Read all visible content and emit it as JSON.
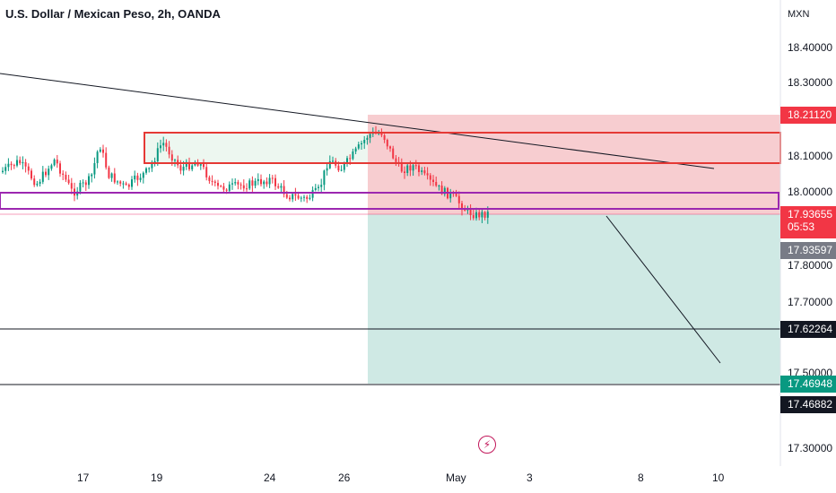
{
  "header": {
    "title": "U.S. Dollar / Mexican Peso, 2h, OANDA",
    "currency": "MXN"
  },
  "price_axis": {
    "ticks": [
      "18.40000",
      "18.30000",
      "18.10000",
      "18.00000",
      "17.80000",
      "17.70000",
      "17.50000",
      "17.30000"
    ]
  },
  "time_axis": {
    "labels": [
      "17",
      "19",
      "24",
      "26",
      "May",
      "3",
      "8",
      "10"
    ]
  },
  "badges": {
    "stop_loss": "18.21120",
    "current_price": "17.93655",
    "countdown": "05:53",
    "entry": "17.93597",
    "level_1": "17.62264",
    "take_profit": "17.46948",
    "level_2": "17.46882"
  },
  "colors": {
    "up": "#089981",
    "down": "#f23645",
    "stop_zone": "#f7cdd0",
    "target_zone": "#cfe9e4",
    "zone_red": "#e53935",
    "zone_purple": "#9c27b0",
    "countdown_badge": "#f23645",
    "take_profit_badge": "#089981",
    "level_badge": "#131722",
    "entry_badge": "#787b86"
  },
  "icons": {
    "live_marker": "lightning-icon"
  }
}
